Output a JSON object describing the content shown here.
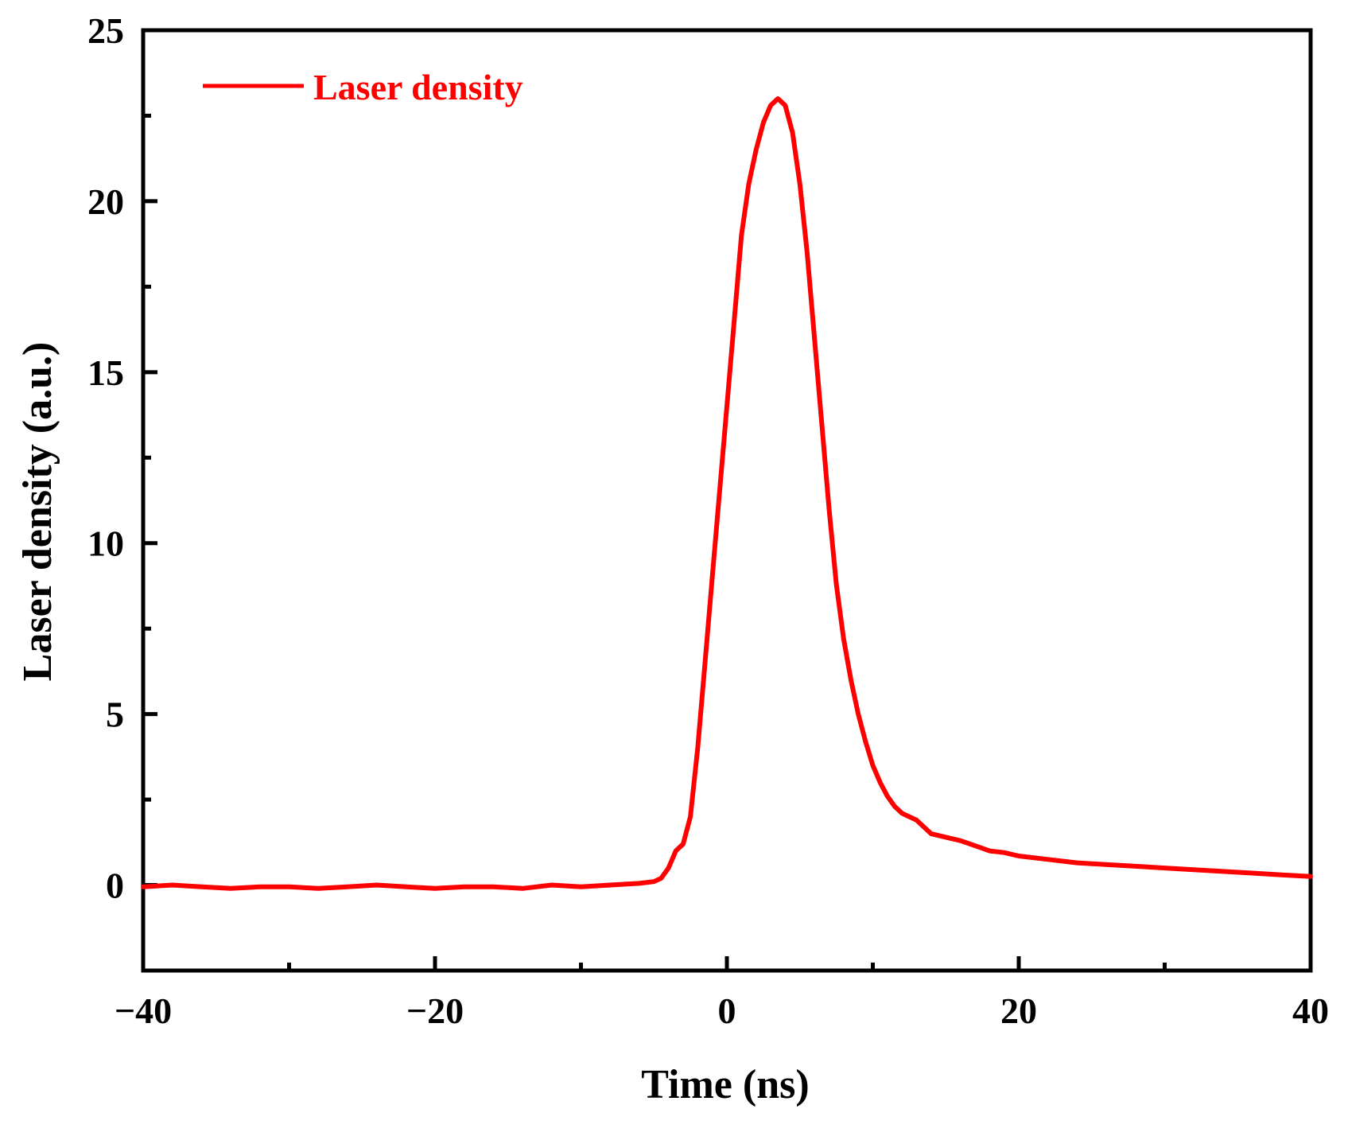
{
  "chart_data": {
    "type": "line",
    "title": "",
    "xlabel": "Time (ns)",
    "ylabel": "Laser density (a.u.)",
    "xlim": [
      -40,
      40
    ],
    "ylim": [
      -2.5,
      25
    ],
    "xticks": [
      -40,
      -20,
      0,
      20,
      40
    ],
    "xtick_labels": [
      "−40",
      "−20",
      "0",
      "20",
      "40"
    ],
    "xminor": [
      -30,
      -10,
      10,
      30
    ],
    "yticks": [
      0,
      5,
      10,
      15,
      20,
      25
    ],
    "ytick_labels": [
      "0",
      "5",
      "10",
      "15",
      "20",
      "25"
    ],
    "yminor": [
      2.5,
      7.5,
      12.5,
      17.5,
      22.5
    ],
    "grid": false,
    "legend": {
      "position": "top-left"
    },
    "colors": {
      "series": "#ff0000",
      "axes": "#000000"
    },
    "series": [
      {
        "name": "Laser density",
        "x": [
          -40,
          -38,
          -36,
          -34,
          -32,
          -30,
          -28,
          -26,
          -24,
          -22,
          -20,
          -18,
          -16,
          -14,
          -12,
          -10,
          -8,
          -6,
          -5,
          -4.5,
          -4,
          -3.5,
          -3,
          -2.5,
          -2,
          -1.5,
          -1,
          -0.5,
          0,
          0.5,
          1,
          1.5,
          2,
          2.5,
          3,
          3.5,
          4,
          4.5,
          5,
          5.5,
          6,
          6.5,
          7,
          7.5,
          8,
          8.5,
          9,
          9.5,
          10,
          10.5,
          11,
          11.5,
          12,
          13,
          14,
          15,
          16,
          17,
          18,
          19,
          20,
          22,
          24,
          26,
          28,
          30,
          32,
          34,
          36,
          38,
          40
        ],
        "y": [
          -0.05,
          0.0,
          -0.05,
          -0.1,
          -0.05,
          -0.05,
          -0.1,
          -0.05,
          0.0,
          -0.05,
          -0.1,
          -0.05,
          -0.05,
          -0.1,
          0.0,
          -0.05,
          0.0,
          0.05,
          0.1,
          0.2,
          0.5,
          1.0,
          1.2,
          2.0,
          4.0,
          6.5,
          9.0,
          11.5,
          14.0,
          16.5,
          19.0,
          20.5,
          21.5,
          22.3,
          22.8,
          23.0,
          22.8,
          22.0,
          20.5,
          18.5,
          16.0,
          13.5,
          11.0,
          8.8,
          7.2,
          6.0,
          5.0,
          4.2,
          3.5,
          3.0,
          2.6,
          2.3,
          2.1,
          1.9,
          1.5,
          1.4,
          1.3,
          1.15,
          1.0,
          0.95,
          0.85,
          0.75,
          0.65,
          0.6,
          0.55,
          0.5,
          0.45,
          0.4,
          0.35,
          0.3,
          0.25
        ]
      }
    ]
  }
}
